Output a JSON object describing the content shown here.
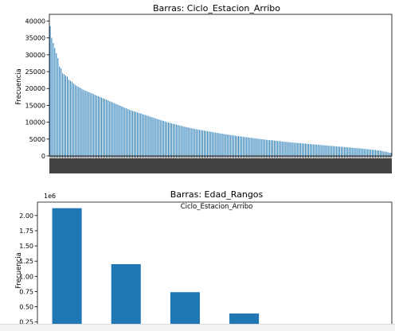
{
  "chart_data": [
    {
      "type": "bar",
      "title": "Barras: Ciclo_Estacion_Arribo",
      "xlabel": "Ciclo_Estacion_Arribo",
      "ylabel": "Frecuencia",
      "ylim": [
        0,
        42000
      ],
      "yticks": [
        0,
        5000,
        10000,
        15000,
        20000,
        25000,
        30000,
        35000,
        40000
      ],
      "ytick_labels": [
        "0",
        "5000",
        "10000",
        "15000",
        "20000",
        "25000",
        "30000",
        "35000",
        "40000"
      ],
      "grid": false,
      "color": "#1f77b4",
      "category_count": 220,
      "values": [
        38500,
        35000,
        33500,
        32000,
        30500,
        29000,
        26500,
        26000,
        24500,
        24200,
        23800,
        23500,
        22600,
        22300,
        22000,
        21500,
        21100,
        20800,
        20500,
        20300,
        20000,
        19700,
        19500,
        19300,
        19100,
        18900,
        18700,
        18500,
        18300,
        18100,
        17900,
        17700,
        17500,
        17300,
        17100,
        16900,
        16700,
        16500,
        16300,
        16100,
        15900,
        15700,
        15500,
        15300,
        15100,
        14900,
        14700,
        14500,
        14300,
        14100,
        13900,
        13700,
        13500,
        13350,
        13200,
        13050,
        12900,
        12750,
        12600,
        12450,
        12300,
        12150,
        12000,
        11850,
        11700,
        11550,
        11400,
        11250,
        11100,
        10950,
        10800,
        10650,
        10500,
        10350,
        10200,
        10050,
        9900,
        9780,
        9660,
        9540,
        9420,
        9300,
        9180,
        9060,
        8940,
        8820,
        8700,
        8600,
        8500,
        8400,
        8300,
        8200,
        8100,
        8000,
        7900,
        7820,
        7740,
        7660,
        7580,
        7500,
        7420,
        7340,
        7260,
        7180,
        7100,
        7020,
        6940,
        6860,
        6780,
        6700,
        6620,
        6550,
        6480,
        6410,
        6340,
        6270,
        6200,
        6130,
        6060,
        5990,
        5920,
        5860,
        5800,
        5740,
        5680,
        5620,
        5560,
        5500,
        5440,
        5380,
        5320,
        5260,
        5200,
        5140,
        5080,
        5020,
        4960,
        4900,
        4850,
        4800,
        4750,
        4700,
        4650,
        4600,
        4550,
        4500,
        4450,
        4400,
        4350,
        4300,
        4250,
        4200,
        4150,
        4100,
        4050,
        4000,
        3960,
        3920,
        3880,
        3840,
        3800,
        3760,
        3720,
        3680,
        3640,
        3600,
        3560,
        3520,
        3480,
        3440,
        3400,
        3360,
        3320,
        3280,
        3240,
        3200,
        3160,
        3120,
        3080,
        3040,
        3000,
        2960,
        2920,
        2880,
        2840,
        2800,
        2760,
        2720,
        2680,
        2640,
        2600,
        2560,
        2520,
        2480,
        2440,
        2400,
        2360,
        2320,
        2280,
        2240,
        2200,
        2150,
        2100,
        2050,
        2000,
        1950,
        1900,
        1850,
        1800,
        1750,
        1700,
        1650,
        1600,
        1500,
        1400,
        1300,
        1200,
        1100,
        1000,
        900
      ]
    },
    {
      "type": "bar",
      "title": "Barras: Edad_Rangos",
      "ylabel": "Frecuencia",
      "y_multiplier": "1e6",
      "ylim": [
        0.22,
        2.22
      ],
      "yticks": [
        0.25,
        0.5,
        0.75,
        1.0,
        1.25,
        1.5,
        1.75,
        2.0
      ],
      "ytick_labels": [
        "0.25",
        "0.50",
        "0.75",
        "1.00",
        "1.25",
        "1.50",
        "1.75",
        "2.00"
      ],
      "grid": false,
      "color": "#1f77b4",
      "values": [
        2.12,
        1.2,
        0.74,
        0.39
      ]
    }
  ]
}
